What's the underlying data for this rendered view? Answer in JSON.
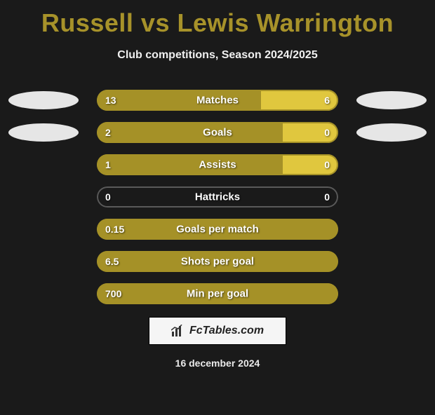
{
  "title": "Russell vs Lewis Warrington",
  "subtitle": "Club competitions, Season 2024/2025",
  "colors": {
    "left_bar": "#a59127",
    "right_bar": "#e0c73e",
    "border_active": "#a59127",
    "border_inactive": "#5a5a5a",
    "ellipse": "#e6e6e6",
    "background": "#1a1a1a",
    "title_color": "#a7922a"
  },
  "rows": [
    {
      "label": "Matches",
      "left_val": "13",
      "right_val": "6",
      "left_pct": 68,
      "right_pct": 32,
      "show_ellipses": true
    },
    {
      "label": "Goals",
      "left_val": "2",
      "right_val": "0",
      "left_pct": 77,
      "right_pct": 23,
      "show_ellipses": true
    },
    {
      "label": "Assists",
      "left_val": "1",
      "right_val": "0",
      "left_pct": 77,
      "right_pct": 23,
      "show_ellipses": false
    },
    {
      "label": "Hattricks",
      "left_val": "0",
      "right_val": "0",
      "left_pct": 0,
      "right_pct": 0,
      "show_ellipses": false
    },
    {
      "label": "Goals per match",
      "left_val": "0.15",
      "right_val": "",
      "left_pct": 100,
      "right_pct": 0,
      "show_ellipses": false
    },
    {
      "label": "Shots per goal",
      "left_val": "6.5",
      "right_val": "",
      "left_pct": 100,
      "right_pct": 0,
      "show_ellipses": false
    },
    {
      "label": "Min per goal",
      "left_val": "700",
      "right_val": "",
      "left_pct": 100,
      "right_pct": 0,
      "show_ellipses": false
    }
  ],
  "footer": {
    "logo_text": "FcTables.com",
    "date": "16 december 2024"
  }
}
